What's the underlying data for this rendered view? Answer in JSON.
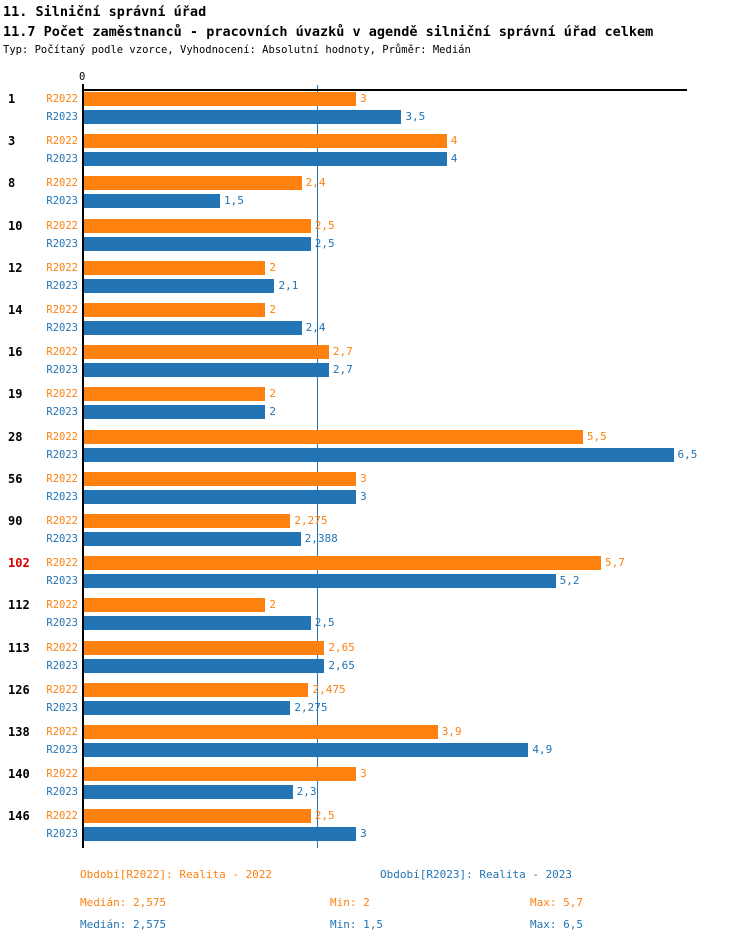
{
  "header": {
    "title": "11. Silniční správní úřad",
    "subtitle": "11.7 Počet zaměstnanců - pracovních úvazků v agendě silniční správní úřad celkem",
    "meta": "Typ: Počítaný podle vzorce, Vyhodnocení: Absolutní hodnoty, Průměr: Medián"
  },
  "colors": {
    "r2022": "#FD810E",
    "r2023": "#2274B5",
    "highlight": "#D60000",
    "median_line": "#2274B5",
    "axis": "#000000"
  },
  "axis": {
    "zero_label": "0"
  },
  "chart_data": {
    "type": "bar",
    "orientation": "horizontal",
    "title": "11.7 Počet zaměstnanců - pracovních úvazků v agendě silniční správní úřad celkem",
    "categories": [
      "1",
      "3",
      "8",
      "10",
      "12",
      "14",
      "16",
      "19",
      "28",
      "56",
      "90",
      "102",
      "112",
      "113",
      "126",
      "138",
      "140",
      "146"
    ],
    "highlighted_categories": [
      "102"
    ],
    "series": [
      {
        "name": "R2022",
        "color_key": "r2022",
        "values": [
          3,
          4,
          2.4,
          2.5,
          2,
          2,
          2.7,
          2,
          5.5,
          3,
          2.275,
          5.7,
          2,
          2.65,
          2.475,
          3.9,
          3,
          2.5
        ],
        "labels": [
          "3",
          "4",
          "2,4",
          "2,5",
          "2",
          "2",
          "2,7",
          "2",
          "5,5",
          "3",
          "2,275",
          "5,7",
          "2",
          "2,65",
          "2,475",
          "3,9",
          "3",
          "2,5"
        ]
      },
      {
        "name": "R2023",
        "color_key": "r2023",
        "values": [
          3.5,
          4,
          1.5,
          2.5,
          2.1,
          2.4,
          2.7,
          2,
          6.5,
          3,
          2.388,
          5.2,
          2.5,
          2.65,
          2.275,
          4.9,
          2.3,
          3
        ],
        "labels": [
          "3,5",
          "4",
          "1,5",
          "2,5",
          "2,1",
          "2,4",
          "2,7",
          "2",
          "6,5",
          "3",
          "2,388",
          "5,2",
          "2,5",
          "2,65",
          "2,275",
          "4,9",
          "2,3",
          "3"
        ]
      }
    ],
    "xlim": [
      0,
      6.65
    ],
    "median_line_value": 2.575,
    "legend_position": "bottom",
    "grid": false
  },
  "legend": {
    "r2022": "Období[R2022]: Realita - 2022",
    "r2023": "Období[R2023]: Realita - 2023"
  },
  "stats": {
    "r2022": {
      "median": "Medián: 2,575",
      "min": "Min: 2",
      "max": "Max: 5,7"
    },
    "r2023": {
      "median": "Medián: 2,575",
      "min": "Min: 1,5",
      "max": "Max: 6,5"
    }
  }
}
